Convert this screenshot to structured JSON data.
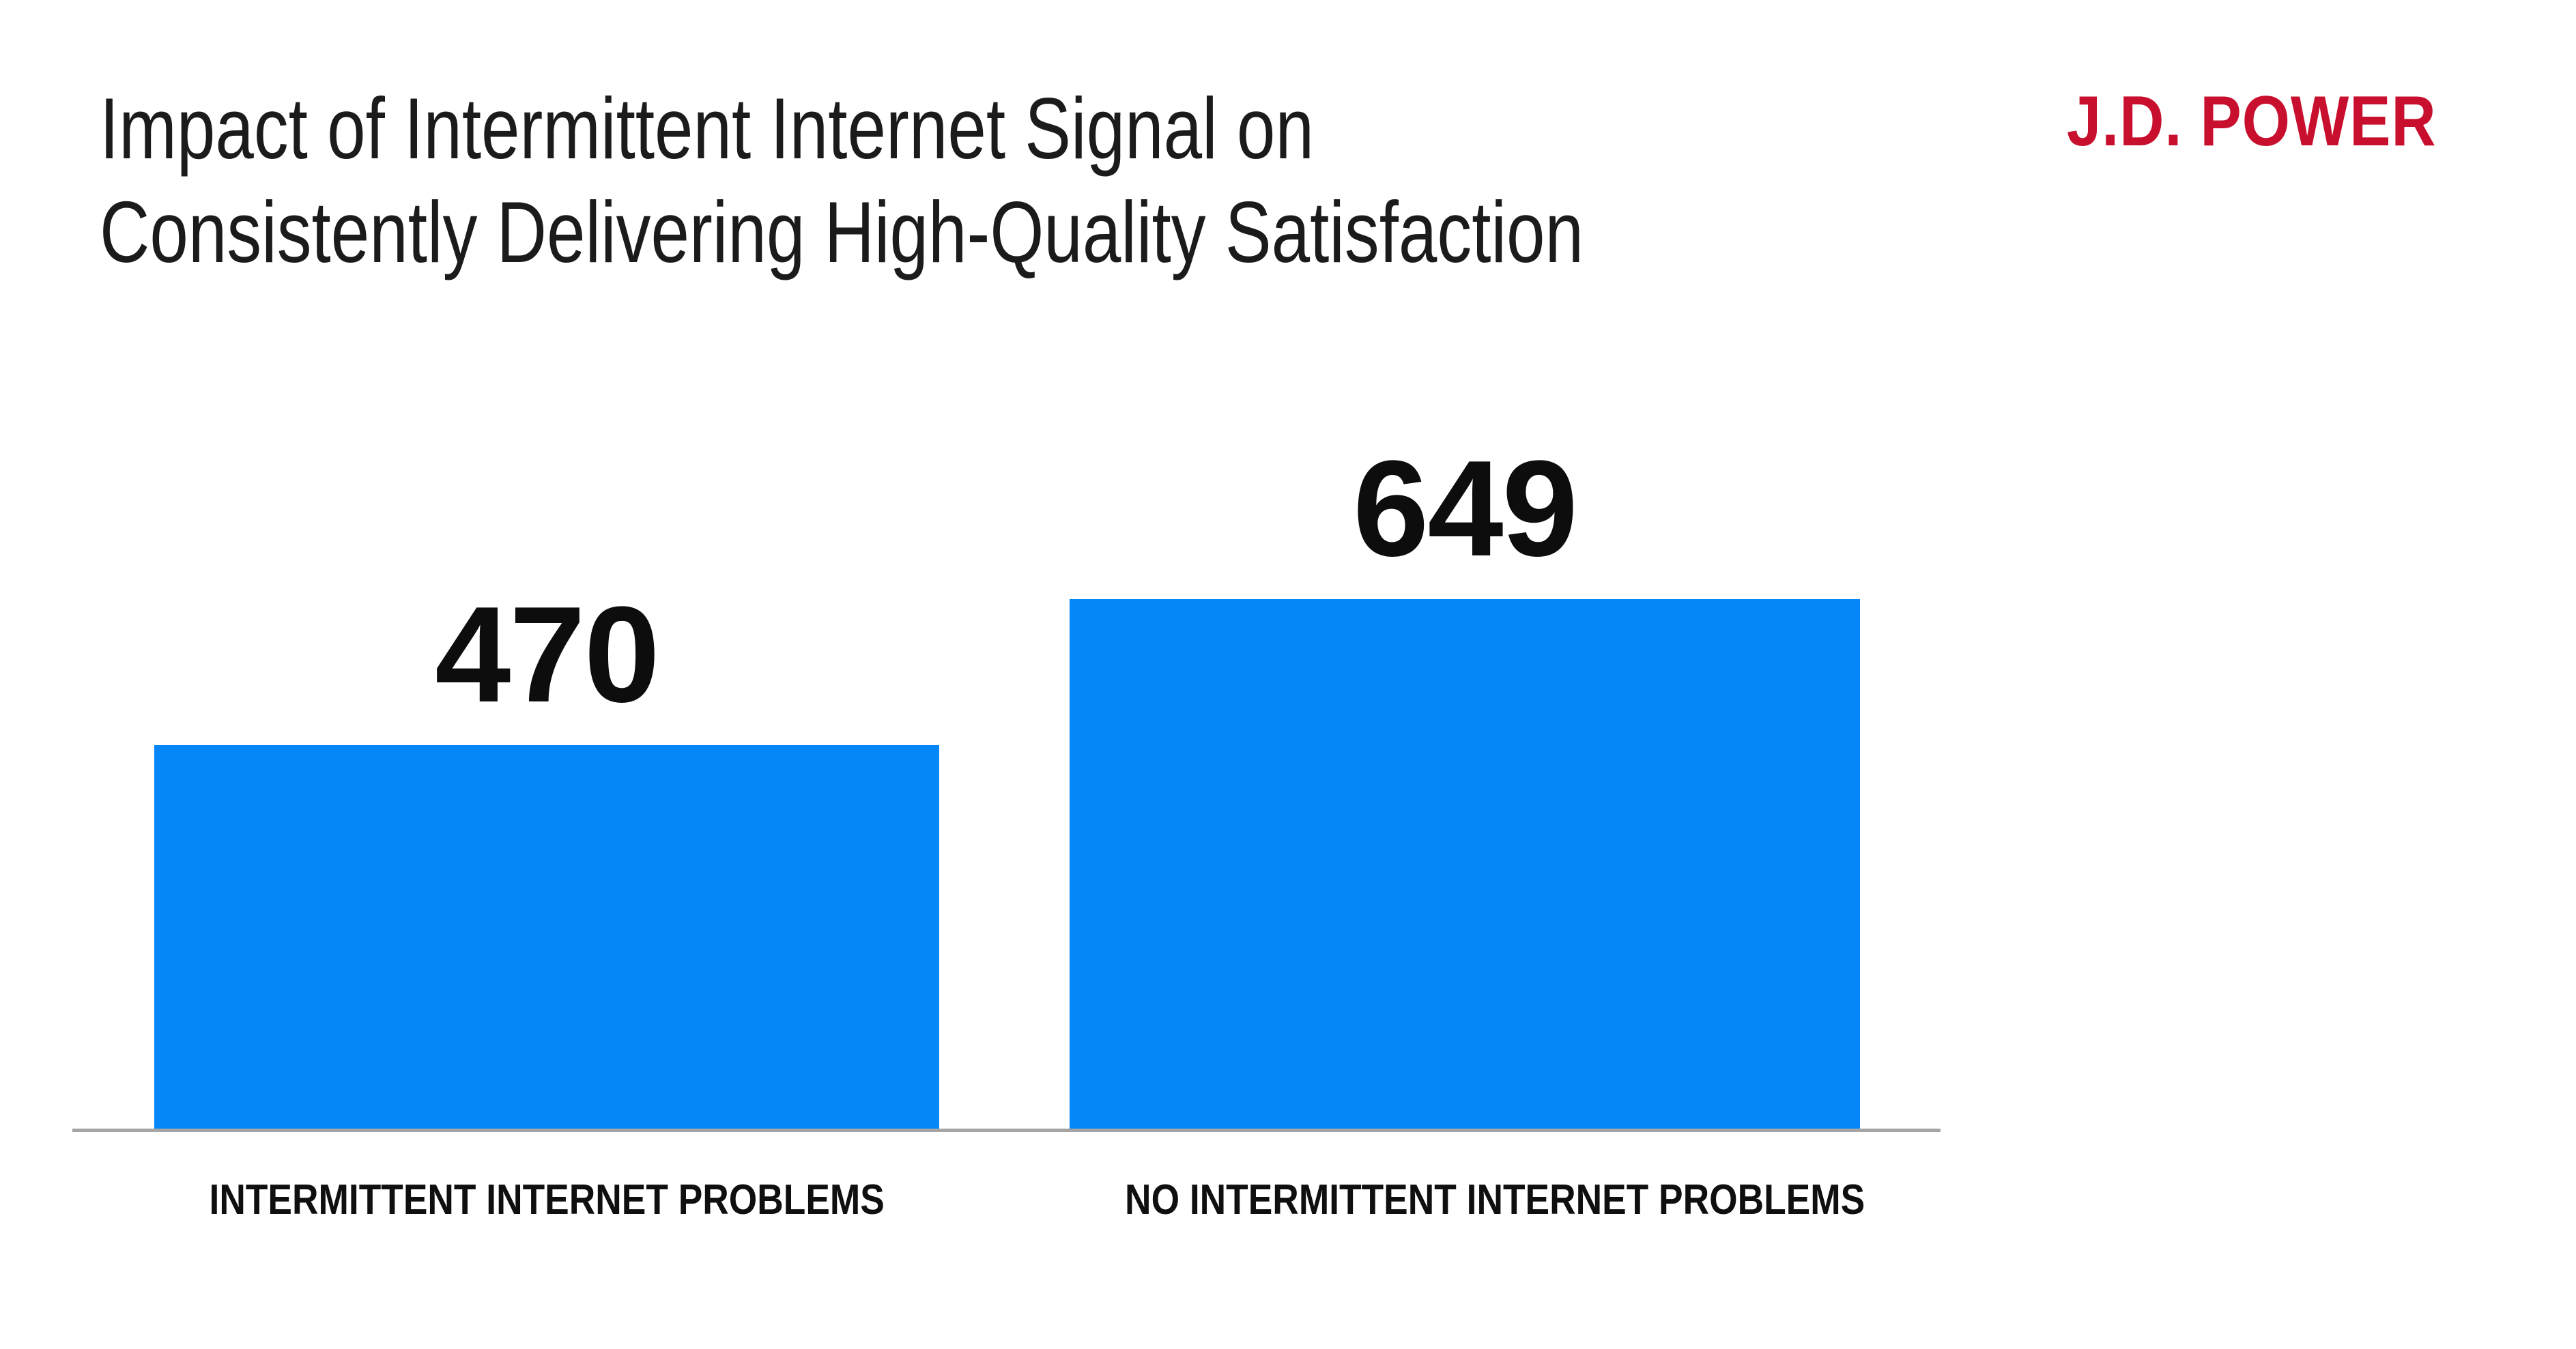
{
  "header": {
    "title_line1": "Impact of Intermittent Internet Signal on",
    "title_line2": "Consistently Delivering High-Quality Satisfaction",
    "logo": "J.D. POWER"
  },
  "colors": {
    "bar": "#0587fa",
    "logo_red": "#c8102e",
    "axis": "#a5a5a5",
    "ink": "#1b1b1b"
  },
  "chart_data": {
    "type": "bar",
    "title": "Impact of Intermittent Internet Signal on Consistently Delivering High-Quality Satisfaction",
    "categories": [
      "INTERMITTENT INTERNET PROBLEMS",
      "NO INTERMITTENT INTERNET PROBLEMS"
    ],
    "values": [
      470,
      649
    ],
    "value_labels": [
      "470",
      "649"
    ],
    "xlabel": "",
    "ylabel": "",
    "ylim": [
      0,
      700
    ],
    "grid": false,
    "legend": false,
    "bar_color": "#0587fa",
    "source_brand": "J.D. POWER"
  }
}
